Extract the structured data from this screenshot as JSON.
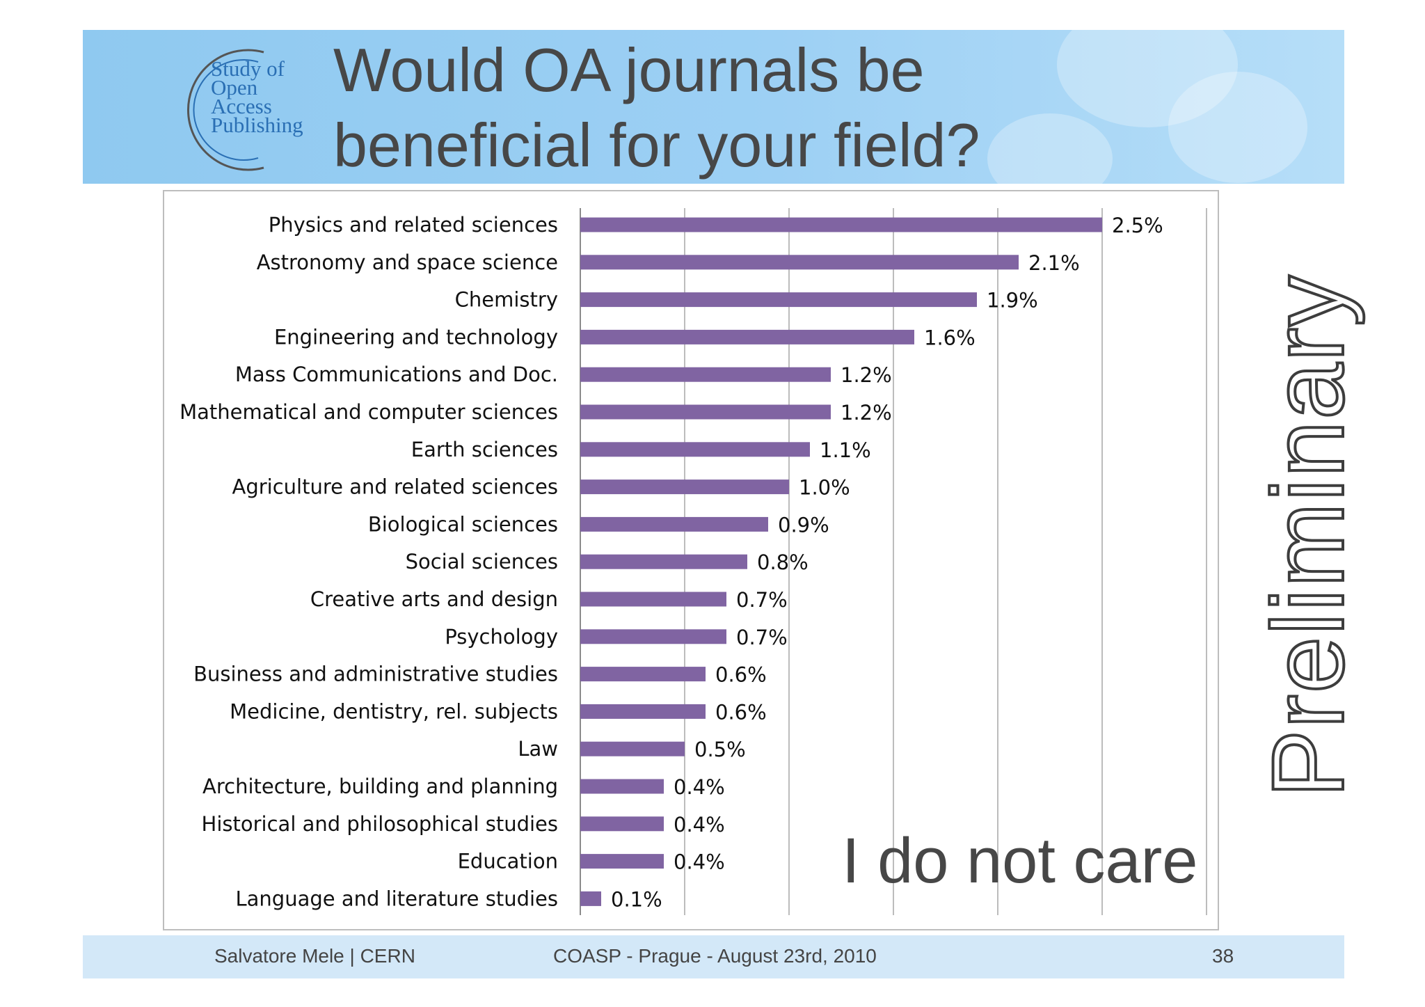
{
  "header": {
    "logo_lines": [
      "Study of",
      "Open",
      "Access",
      "Publishing"
    ],
    "title_line1": "Would OA journals be",
    "title_line2": "beneficial for your field?"
  },
  "annotation": "I do not care",
  "watermark": "Preliminary",
  "footer": {
    "author": "Salvatore Mele | CERN",
    "event": "COASP - Prague - August 23rd, 2010",
    "page": "38"
  },
  "colors": {
    "bar": "#8064a2",
    "header_bg": "#9dd0f4",
    "footer_bg": "#d3e8f8",
    "gridline": "#a6a6a6"
  },
  "chart_data": {
    "type": "bar",
    "orientation": "horizontal",
    "categories": [
      "Physics and related sciences",
      "Astronomy and space science",
      "Chemistry",
      "Engineering and technology",
      "Mass Communications and Doc.",
      "Mathematical and computer sciences",
      "Earth sciences",
      "Agriculture and related sciences",
      "Biological sciences",
      "Social sciences",
      "Creative arts and design",
      "Psychology",
      "Business and administrative studies",
      "Medicine, dentistry, rel. subjects",
      "Law",
      "Architecture, building and planning",
      "Historical and philosophical studies",
      "Education",
      "Language and literature studies"
    ],
    "values": [
      2.5,
      2.1,
      1.9,
      1.6,
      1.2,
      1.2,
      1.1,
      1.0,
      0.9,
      0.8,
      0.7,
      0.7,
      0.6,
      0.6,
      0.5,
      0.4,
      0.4,
      0.4,
      0.1
    ],
    "value_labels": [
      "2.5%",
      "2.1%",
      "1.9%",
      "1.6%",
      "1.2%",
      "1.2%",
      "1.1%",
      "1.0%",
      "0.9%",
      "0.8%",
      "0.7%",
      "0.7%",
      "0.6%",
      "0.6%",
      "0.5%",
      "0.4%",
      "0.4%",
      "0.4%",
      "0.1%"
    ],
    "xlim": [
      0,
      3.0
    ],
    "grid": true,
    "title": "",
    "xlabel": "",
    "ylabel": ""
  }
}
